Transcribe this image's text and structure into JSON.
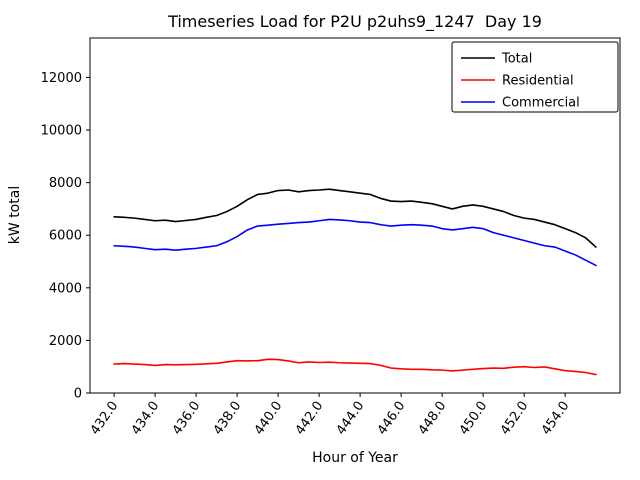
{
  "chart_data": {
    "type": "line",
    "title": "Timeseries Load for P2U p2uhs9_1247  Day 19",
    "xlabel": "Hour of Year",
    "ylabel": "kW total",
    "xlim": [
      430.825,
      456.675
    ],
    "ylim": [
      0,
      13500
    ],
    "grid": false,
    "legend_position": "upper right",
    "xticks": [
      432,
      434,
      436,
      438,
      440,
      442,
      444,
      446,
      448,
      450,
      452,
      454
    ],
    "xtick_labels": [
      "432.0",
      "434.0",
      "436.0",
      "438.0",
      "440.0",
      "442.0",
      "444.0",
      "446.0",
      "448.0",
      "450.0",
      "452.0",
      "454.0"
    ],
    "yticks": [
      0,
      2000,
      4000,
      6000,
      8000,
      10000,
      12000
    ],
    "ytick_labels": [
      "0",
      "2000",
      "4000",
      "6000",
      "8000",
      "10000",
      "12000"
    ],
    "x": [
      432.0,
      432.5,
      433.0,
      433.5,
      434.0,
      434.5,
      435.0,
      435.5,
      436.0,
      436.5,
      437.0,
      437.5,
      438.0,
      438.5,
      439.0,
      439.5,
      440.0,
      440.5,
      441.0,
      441.5,
      442.0,
      442.5,
      443.0,
      443.5,
      444.0,
      444.5,
      445.0,
      445.5,
      446.0,
      446.5,
      447.0,
      447.5,
      448.0,
      448.5,
      449.0,
      449.5,
      450.0,
      450.5,
      451.0,
      451.5,
      452.0,
      452.5,
      453.0,
      453.5,
      454.0,
      454.5,
      455.0,
      455.5
    ],
    "series": [
      {
        "name": "Total",
        "color": "#000000",
        "values": [
          6700,
          6680,
          6650,
          6600,
          6550,
          6570,
          6520,
          6560,
          6600,
          6680,
          6750,
          6900,
          7100,
          7350,
          7550,
          7600,
          7700,
          7720,
          7650,
          7700,
          7720,
          7750,
          7700,
          7650,
          7600,
          7550,
          7400,
          7300,
          7280,
          7300,
          7250,
          7200,
          7100,
          7000,
          7100,
          7150,
          7100,
          7000,
          6900,
          6750,
          6650,
          6600,
          6500,
          6400,
          6250,
          6100,
          5900,
          5550
        ]
      },
      {
        "name": "Residential",
        "color": "#ff0000",
        "values": [
          1100,
          1120,
          1100,
          1080,
          1050,
          1080,
          1070,
          1080,
          1090,
          1110,
          1130,
          1180,
          1230,
          1220,
          1230,
          1280,
          1270,
          1220,
          1150,
          1180,
          1160,
          1170,
          1150,
          1140,
          1130,
          1120,
          1050,
          950,
          920,
          900,
          900,
          880,
          870,
          840,
          870,
          900,
          930,
          950,
          940,
          980,
          1000,
          970,
          990,
          920,
          850,
          820,
          780,
          700
        ]
      },
      {
        "name": "Commercial",
        "color": "#0000ff",
        "values": [
          5600,
          5580,
          5550,
          5500,
          5450,
          5470,
          5430,
          5470,
          5500,
          5550,
          5600,
          5750,
          5950,
          6200,
          6350,
          6380,
          6420,
          6450,
          6480,
          6500,
          6550,
          6600,
          6580,
          6550,
          6500,
          6480,
          6400,
          6350,
          6380,
          6400,
          6380,
          6350,
          6250,
          6200,
          6250,
          6300,
          6250,
          6100,
          6000,
          5900,
          5800,
          5700,
          5600,
          5550,
          5400,
          5250,
          5050,
          4850
        ]
      }
    ]
  }
}
